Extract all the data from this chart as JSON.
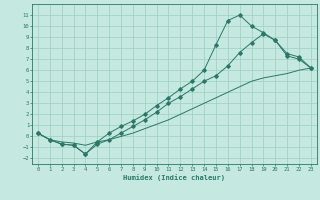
{
  "xlabel": "Humidex (Indice chaleur)",
  "bg_color": "#c5e8e0",
  "grid_color": "#9ecfc4",
  "line_color": "#2a7868",
  "xlim": [
    -0.5,
    23.5
  ],
  "ylim": [
    -2.5,
    12
  ],
  "xticks": [
    0,
    1,
    2,
    3,
    4,
    5,
    6,
    7,
    8,
    9,
    10,
    11,
    12,
    13,
    14,
    15,
    16,
    17,
    18,
    19,
    20,
    21,
    22,
    23
  ],
  "yticks": [
    -2,
    -1,
    0,
    1,
    2,
    3,
    4,
    5,
    6,
    7,
    8,
    9,
    10,
    11
  ],
  "line1_x": [
    0,
    1,
    2,
    3,
    4,
    5,
    6,
    7,
    8,
    9,
    10,
    11,
    12,
    13,
    14,
    15,
    16,
    17,
    18,
    19,
    20,
    21,
    22,
    23
  ],
  "line1_y": [
    0.3,
    -0.3,
    -0.5,
    -0.6,
    -0.8,
    -0.5,
    -0.3,
    0.0,
    0.3,
    0.7,
    1.1,
    1.5,
    2.0,
    2.5,
    3.0,
    3.5,
    4.0,
    4.5,
    5.0,
    5.3,
    5.5,
    5.7,
    6.0,
    6.2
  ],
  "line2_x": [
    0,
    1,
    2,
    3,
    4,
    5,
    6,
    7,
    8,
    9,
    10,
    11,
    12,
    13,
    14,
    15,
    16,
    17,
    18,
    19,
    20,
    21,
    22,
    23
  ],
  "line2_y": [
    0.3,
    -0.3,
    -0.7,
    -0.8,
    -1.6,
    -0.7,
    -0.3,
    0.3,
    0.9,
    1.5,
    2.2,
    3.0,
    3.6,
    4.3,
    5.0,
    5.5,
    6.4,
    7.6,
    8.5,
    9.3,
    8.7,
    7.3,
    7.0,
    6.2
  ],
  "line3_x": [
    0,
    1,
    2,
    3,
    4,
    5,
    6,
    7,
    8,
    9,
    10,
    11,
    12,
    13,
    14,
    15,
    16,
    17,
    18,
    19,
    20,
    21,
    22,
    23
  ],
  "line3_y": [
    0.3,
    -0.3,
    -0.7,
    -0.8,
    -1.6,
    -0.5,
    0.3,
    0.9,
    1.4,
    2.0,
    2.8,
    3.5,
    4.3,
    5.0,
    6.0,
    8.3,
    10.5,
    11.0,
    10.0,
    9.4,
    8.7,
    7.5,
    7.2,
    6.2
  ]
}
